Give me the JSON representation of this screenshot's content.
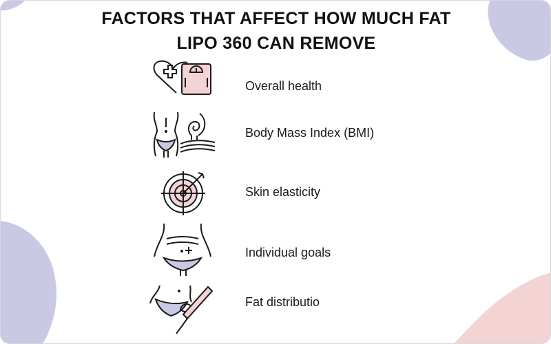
{
  "title_line1": "FACTORS THAT AFFECT HOW MUCH FAT",
  "title_line2": "LIPO 360 CAN REMOVE",
  "colors": {
    "lavender": "#c9c9e3",
    "pink": "#f3d3d3",
    "stroke": "#1a1a1a"
  },
  "factors": [
    {
      "label": "Overall health",
      "icon": "heart-scale-icon"
    },
    {
      "label": "Body Mass Index (BMI)",
      "icon": "body-fat-icon"
    },
    {
      "label": "Skin elasticity",
      "icon": "target-icon"
    },
    {
      "label": "Individual goals",
      "icon": "waist-icon"
    },
    {
      "label": "Fat distributio",
      "icon": "cannula-icon"
    }
  ]
}
